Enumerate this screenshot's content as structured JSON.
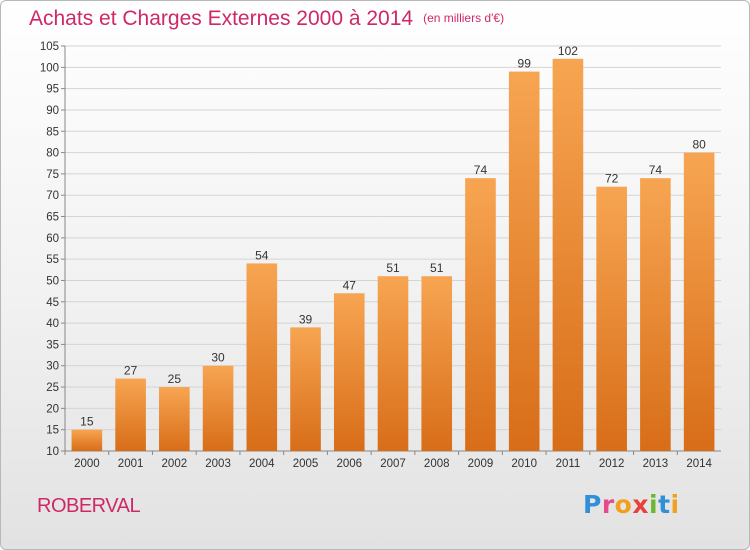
{
  "title": "Achats et Charges Externes 2000 à 2014",
  "unit_label": "(en milliers d'€)",
  "location": "ROBERVAL",
  "logo": {
    "letters": [
      {
        "ch": "P",
        "color": "#2f8fd8"
      },
      {
        "ch": "r",
        "color": "#e64a8a"
      },
      {
        "ch": "o",
        "color": "#f2a01c"
      },
      {
        "ch": "x",
        "color": "#e8403a"
      },
      {
        "ch": "i",
        "color": "#6ab832"
      },
      {
        "ch": "t",
        "color": "#2f8fd8"
      },
      {
        "ch": "i",
        "color": "#f2a01c"
      }
    ]
  },
  "chart_data": {
    "type": "bar",
    "categories": [
      "2000",
      "2001",
      "2002",
      "2003",
      "2004",
      "2005",
      "2006",
      "2007",
      "2008",
      "2009",
      "2010",
      "2011",
      "2012",
      "2013",
      "2014"
    ],
    "values": [
      15,
      27,
      25,
      30,
      54,
      39,
      47,
      51,
      51,
      74,
      99,
      102,
      72,
      74,
      80
    ],
    "data_labels": [
      "15",
      "27",
      "25",
      "30",
      "54",
      "39",
      "47",
      "51",
      "51",
      "74",
      "99",
      "102",
      "72",
      "74",
      "80"
    ],
    "ylim": [
      10,
      105
    ],
    "yticks": [
      10,
      15,
      20,
      25,
      30,
      35,
      40,
      45,
      50,
      55,
      60,
      65,
      70,
      75,
      80,
      85,
      90,
      95,
      100,
      105
    ],
    "grid": true,
    "bar_color_top": "#f7a552",
    "bar_color_bottom": "#d86d18",
    "text_color": "#cf2868"
  }
}
